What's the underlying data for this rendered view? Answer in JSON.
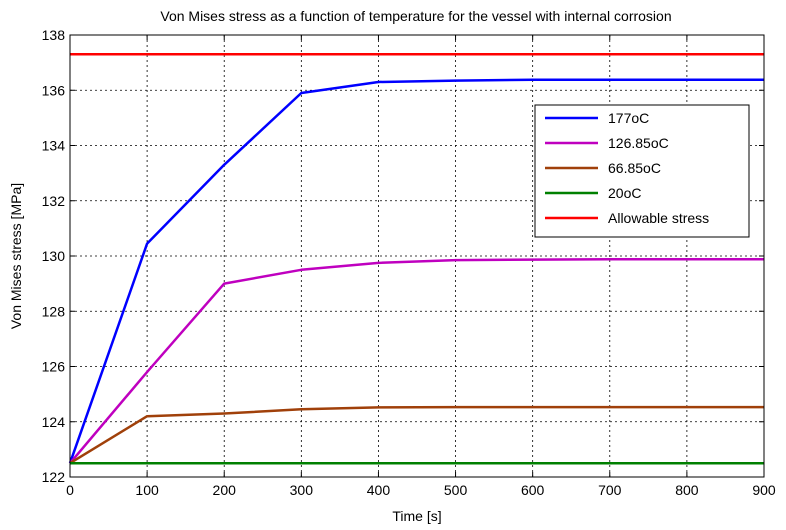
{
  "chart_data": {
    "type": "line",
    "title": "Von Mises stress as a function of temperature for the vessel with internal corrosion",
    "xlabel": "Time [s]",
    "ylabel": "Von Mises stress [MPa]",
    "xlim": [
      0,
      900
    ],
    "ylim": [
      122,
      138
    ],
    "xticks": [
      0,
      100,
      200,
      300,
      400,
      500,
      600,
      700,
      800,
      900
    ],
    "yticks": [
      122,
      124,
      126,
      128,
      130,
      132,
      134,
      136,
      138
    ],
    "grid": true,
    "legend_position": "top-right",
    "series": [
      {
        "name": "177oC",
        "color": "#0000ff",
        "x": [
          0,
          100,
          200,
          300,
          400,
          500,
          600,
          700,
          800,
          900
        ],
        "y": [
          122.5,
          130.45,
          133.3,
          135.9,
          136.3,
          136.35,
          136.38,
          136.38,
          136.38,
          136.38
        ]
      },
      {
        "name": "126.85oC",
        "color": "#bf00bf",
        "x": [
          0,
          100,
          200,
          300,
          400,
          500,
          600,
          700,
          800,
          900
        ],
        "y": [
          122.5,
          125.8,
          129.0,
          129.5,
          129.75,
          129.85,
          129.87,
          129.88,
          129.88,
          129.88
        ]
      },
      {
        "name": "66.85oC",
        "color": "#a0400a",
        "x": [
          0,
          100,
          200,
          300,
          400,
          500,
          600,
          700,
          800,
          900
        ],
        "y": [
          122.5,
          124.2,
          124.3,
          124.45,
          124.52,
          124.53,
          124.53,
          124.53,
          124.53,
          124.53
        ]
      },
      {
        "name": "20oC",
        "color": "#008000",
        "x": [
          0,
          900
        ],
        "y": [
          122.5,
          122.5
        ]
      },
      {
        "name": "Allowable stress",
        "color": "#ff0000",
        "x": [
          0,
          900
        ],
        "y": [
          137.3,
          137.3
        ]
      }
    ]
  }
}
